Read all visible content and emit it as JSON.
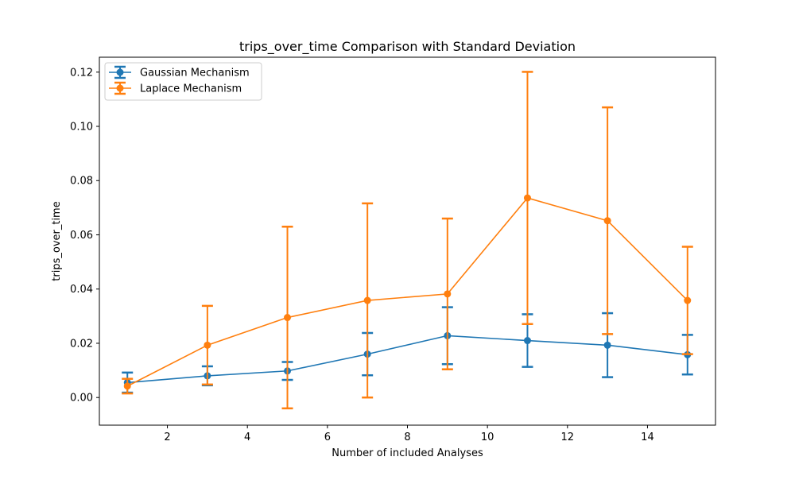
{
  "chart_data": {
    "type": "line",
    "title": "trips_over_time Comparison with Standard Deviation",
    "xlabel": "Number of included Analyses",
    "ylabel": "trips_over_time",
    "xlim": [
      0.3,
      15.7
    ],
    "ylim": [
      -0.0102,
      0.1255
    ],
    "x_ticks": [
      2,
      4,
      6,
      8,
      10,
      12,
      14
    ],
    "x_tick_labels": [
      "2",
      "4",
      "6",
      "8",
      "10",
      "12",
      "14"
    ],
    "y_ticks": [
      0.0,
      0.02,
      0.04,
      0.06,
      0.08,
      0.1,
      0.12
    ],
    "y_tick_labels": [
      "0.00",
      "0.02",
      "0.04",
      "0.06",
      "0.08",
      "0.10",
      "0.12"
    ],
    "grid": false,
    "legend_position": "top-left",
    "x": [
      1,
      3,
      5,
      7,
      9,
      11,
      13,
      15
    ],
    "series": [
      {
        "name": "Gaussian Mechanism",
        "color": "#1f77b4",
        "values": [
          0.0055,
          0.008,
          0.0098,
          0.016,
          0.0228,
          0.021,
          0.0193,
          0.0158
        ],
        "errors": [
          0.0037,
          0.0035,
          0.0033,
          0.0078,
          0.0105,
          0.0097,
          0.0118,
          0.0073
        ]
      },
      {
        "name": "Laplace Mechanism",
        "color": "#ff7f0e",
        "values": [
          0.0042,
          0.0193,
          0.0295,
          0.0358,
          0.0382,
          0.0736,
          0.0652,
          0.0358
        ],
        "errors": [
          0.0027,
          0.0145,
          0.0335,
          0.0358,
          0.0278,
          0.0465,
          0.0418,
          0.0198
        ]
      }
    ]
  }
}
